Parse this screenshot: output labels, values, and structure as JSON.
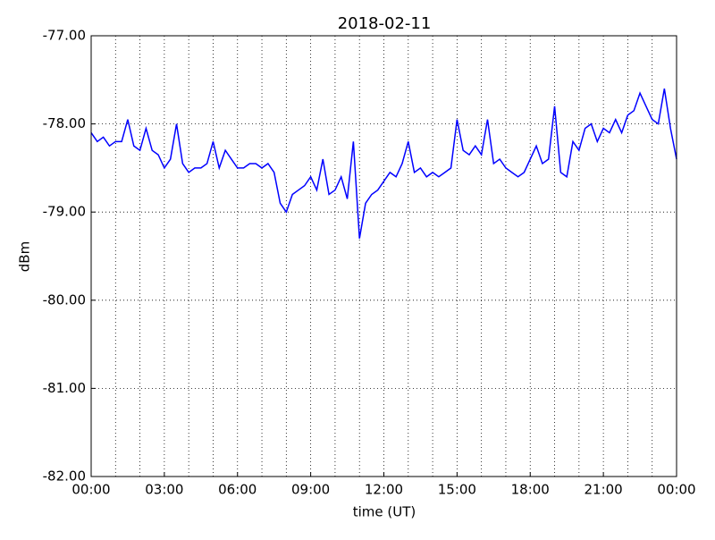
{
  "chart_data": {
    "type": "line",
    "title": "2018-02-11",
    "xlabel": "time (UT)",
    "ylabel": "dBm",
    "x": [
      0,
      0.25,
      0.5,
      0.75,
      1,
      1.25,
      1.5,
      1.75,
      2,
      2.25,
      2.5,
      2.75,
      3,
      3.25,
      3.5,
      3.75,
      4,
      4.25,
      4.5,
      4.75,
      5,
      5.25,
      5.5,
      5.75,
      6,
      6.25,
      6.5,
      6.75,
      7,
      7.25,
      7.5,
      7.75,
      8,
      8.25,
      8.5,
      8.75,
      9,
      9.25,
      9.5,
      9.75,
      10,
      10.25,
      10.5,
      10.75,
      11,
      11.25,
      11.5,
      11.75,
      12,
      12.25,
      12.5,
      12.75,
      13,
      13.25,
      13.5,
      13.75,
      14,
      14.25,
      14.5,
      14.75,
      15,
      15.25,
      15.5,
      15.75,
      16,
      16.25,
      16.5,
      16.75,
      17,
      17.25,
      17.5,
      17.75,
      18,
      18.25,
      18.5,
      18.75,
      19,
      19.25,
      19.5,
      19.75,
      20,
      20.25,
      20.5,
      20.75,
      21,
      21.25,
      21.5,
      21.75,
      22,
      22.25,
      22.5,
      22.75,
      23,
      23.25,
      23.5,
      23.75,
      24
    ],
    "series": [
      {
        "name": "dBm",
        "color": "#0000ff",
        "values": [
          -78.1,
          -78.2,
          -78.15,
          -78.25,
          -78.2,
          -78.2,
          -77.95,
          -78.25,
          -78.3,
          -78.05,
          -78.3,
          -78.35,
          -78.5,
          -78.4,
          -78.0,
          -78.45,
          -78.55,
          -78.5,
          -78.5,
          -78.45,
          -78.2,
          -78.5,
          -78.3,
          -78.4,
          -78.5,
          -78.5,
          -78.45,
          -78.45,
          -78.5,
          -78.45,
          -78.55,
          -78.9,
          -79.0,
          -78.8,
          -78.75,
          -78.7,
          -78.6,
          -78.75,
          -78.4,
          -78.8,
          -78.75,
          -78.6,
          -78.85,
          -78.2,
          -79.3,
          -78.9,
          -78.8,
          -78.75,
          -78.65,
          -78.55,
          -78.6,
          -78.45,
          -78.2,
          -78.55,
          -78.5,
          -78.6,
          -78.55,
          -78.6,
          -78.55,
          -78.5,
          -77.95,
          -78.3,
          -78.35,
          -78.25,
          -78.35,
          -77.95,
          -78.45,
          -78.4,
          -78.5,
          -78.55,
          -78.6,
          -78.55,
          -78.4,
          -78.25,
          -78.45,
          -78.4,
          -77.8,
          -78.55,
          -78.6,
          -78.2,
          -78.3,
          -78.05,
          -78.0,
          -78.2,
          -78.05,
          -78.1,
          -77.95,
          -78.1,
          -77.9,
          -77.85,
          -77.65,
          -77.8,
          -77.95,
          -78.0,
          -77.6,
          -78.05,
          -78.4
        ]
      }
    ],
    "xlim": [
      0,
      24
    ],
    "xticks": [
      {
        "value": 0,
        "label": "00:00"
      },
      {
        "value": 3,
        "label": "03:00"
      },
      {
        "value": 6,
        "label": "06:00"
      },
      {
        "value": 9,
        "label": "09:00"
      },
      {
        "value": 12,
        "label": "12:00"
      },
      {
        "value": 15,
        "label": "15:00"
      },
      {
        "value": 18,
        "label": "18:00"
      },
      {
        "value": 21,
        "label": "21:00"
      },
      {
        "value": 24,
        "label": "00:00"
      }
    ],
    "xminorticks": [
      1,
      2,
      4,
      5,
      7,
      8,
      10,
      11,
      13,
      14,
      16,
      17,
      19,
      20,
      22,
      23
    ],
    "ylim": [
      -82,
      -77
    ],
    "yticks": [
      {
        "value": -82,
        "label": "-82.00"
      },
      {
        "value": -81,
        "label": "-81.00"
      },
      {
        "value": -80,
        "label": "-80.00"
      },
      {
        "value": -79,
        "label": "-79.00"
      },
      {
        "value": -78,
        "label": "-78.00"
      },
      {
        "value": -77,
        "label": "-77.00"
      }
    ],
    "grid": true
  }
}
